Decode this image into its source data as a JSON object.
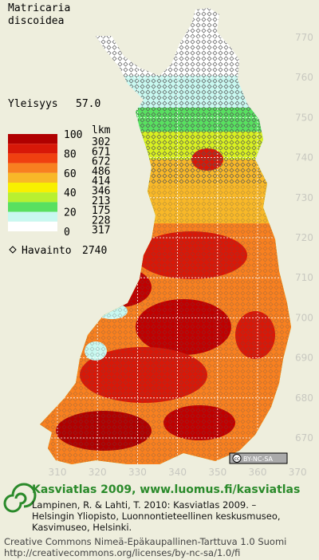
{
  "title": [
    "Matricaria",
    "discoidea"
  ],
  "frequency": {
    "label": "Yleisyys",
    "value": "57.0"
  },
  "legend": {
    "scale_labels": [
      "100",
      "80",
      "60",
      "40",
      "20",
      "0"
    ],
    "count_header": "lkm",
    "counts": [
      302,
      671,
      672,
      486,
      414,
      346,
      213,
      175,
      228,
      317
    ],
    "colors": [
      "#b00000",
      "#d81808",
      "#f04010",
      "#f88020",
      "#f8b828",
      "#f8f000",
      "#b8f030",
      "#58e060",
      "#c8f8f0",
      "#ffffff"
    ]
  },
  "observations": {
    "label": "Havainto",
    "value": 2740
  },
  "grid": {
    "y_labels": [
      770,
      760,
      750,
      740,
      730,
      720,
      710,
      700,
      690,
      680,
      670
    ],
    "x_labels": [
      310,
      320,
      330,
      340,
      350,
      360,
      370
    ]
  },
  "badge": {
    "cc": "cc",
    "license": "BY-NC-SA"
  },
  "footer": {
    "heading": "Kasviatlas 2009, www.luomus.fi/kasviatlas",
    "citation": [
      "Lampinen, R. & Lahti, T. 2010: Kasviatlas 2009. –",
      "Helsingin Yliopisto, Luonnontieteellinen keskusmuseo,",
      "Kasvimuseo, Helsinki."
    ],
    "license": [
      "Creative Commons Nimeä-Epäkaupallinen-Tarttuva 1.0 Suomi",
      "http://creativecommons.org/licenses/by-nc-sa/1.0/fi"
    ]
  }
}
